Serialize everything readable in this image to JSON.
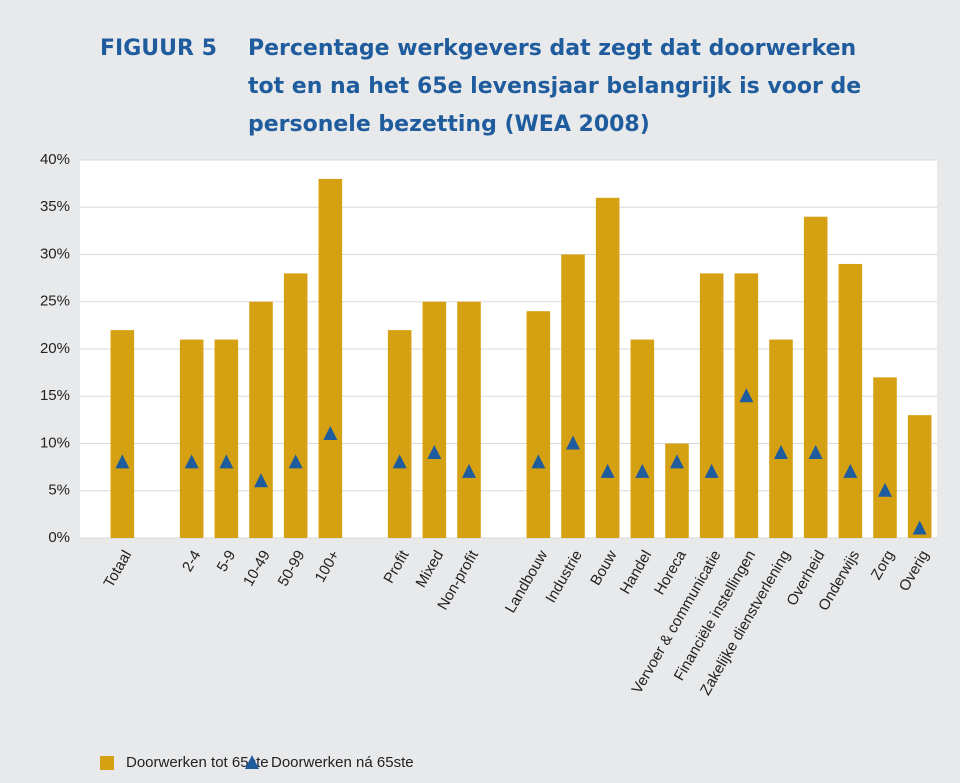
{
  "chart_data": {
    "type": "bar",
    "figure_label": "FIGUUR 5",
    "title": "Percentage werkgevers dat zegt dat doorwerken tot en na het 65e levensjaar belangrijk is voor de personele bezetting (WEA 2008)",
    "categories": [
      "Totaal",
      null,
      "2-4",
      "5-9",
      "10-49",
      "50-99",
      "100+",
      null,
      "Profit",
      "Mixed",
      "Non-profit",
      null,
      "Landbouw",
      "Industrie",
      "Bouw",
      "Handel",
      "Horeca",
      "Vervoer & communicatie",
      "Financiële instellingen",
      "Zakelijke dienstverlening",
      "Overheid",
      "Onderwijs",
      "Zorg",
      "Overig"
    ],
    "series": [
      {
        "name": "Doorwerken tot 65ste",
        "type": "bar",
        "color": "#d5a113",
        "values": [
          22,
          null,
          21,
          21,
          25,
          28,
          38,
          null,
          22,
          25,
          25,
          null,
          24,
          30,
          36,
          21,
          10,
          28,
          28,
          21,
          34,
          29,
          17,
          13
        ]
      },
      {
        "name": "Doorwerken ná 65ste",
        "type": "scatter",
        "color": "#1f5c9e",
        "values": [
          8,
          null,
          8,
          8,
          6,
          8,
          11,
          null,
          8,
          9,
          7,
          null,
          8,
          10,
          7,
          7,
          8,
          7,
          15,
          9,
          9,
          7,
          5,
          1
        ]
      }
    ],
    "ylim": [
      0,
      40
    ],
    "yticks": [
      {
        "value": 0,
        "label": "0%"
      },
      {
        "value": 5,
        "label": "5%"
      },
      {
        "value": 10,
        "label": "10%"
      },
      {
        "value": 15,
        "label": "15%"
      },
      {
        "value": 20,
        "label": "20%"
      },
      {
        "value": 25,
        "label": "25%"
      },
      {
        "value": 30,
        "label": "30%"
      },
      {
        "value": 35,
        "label": "35%"
      },
      {
        "value": 40,
        "label": "40%"
      }
    ],
    "grid": true,
    "legend": "bottom"
  }
}
